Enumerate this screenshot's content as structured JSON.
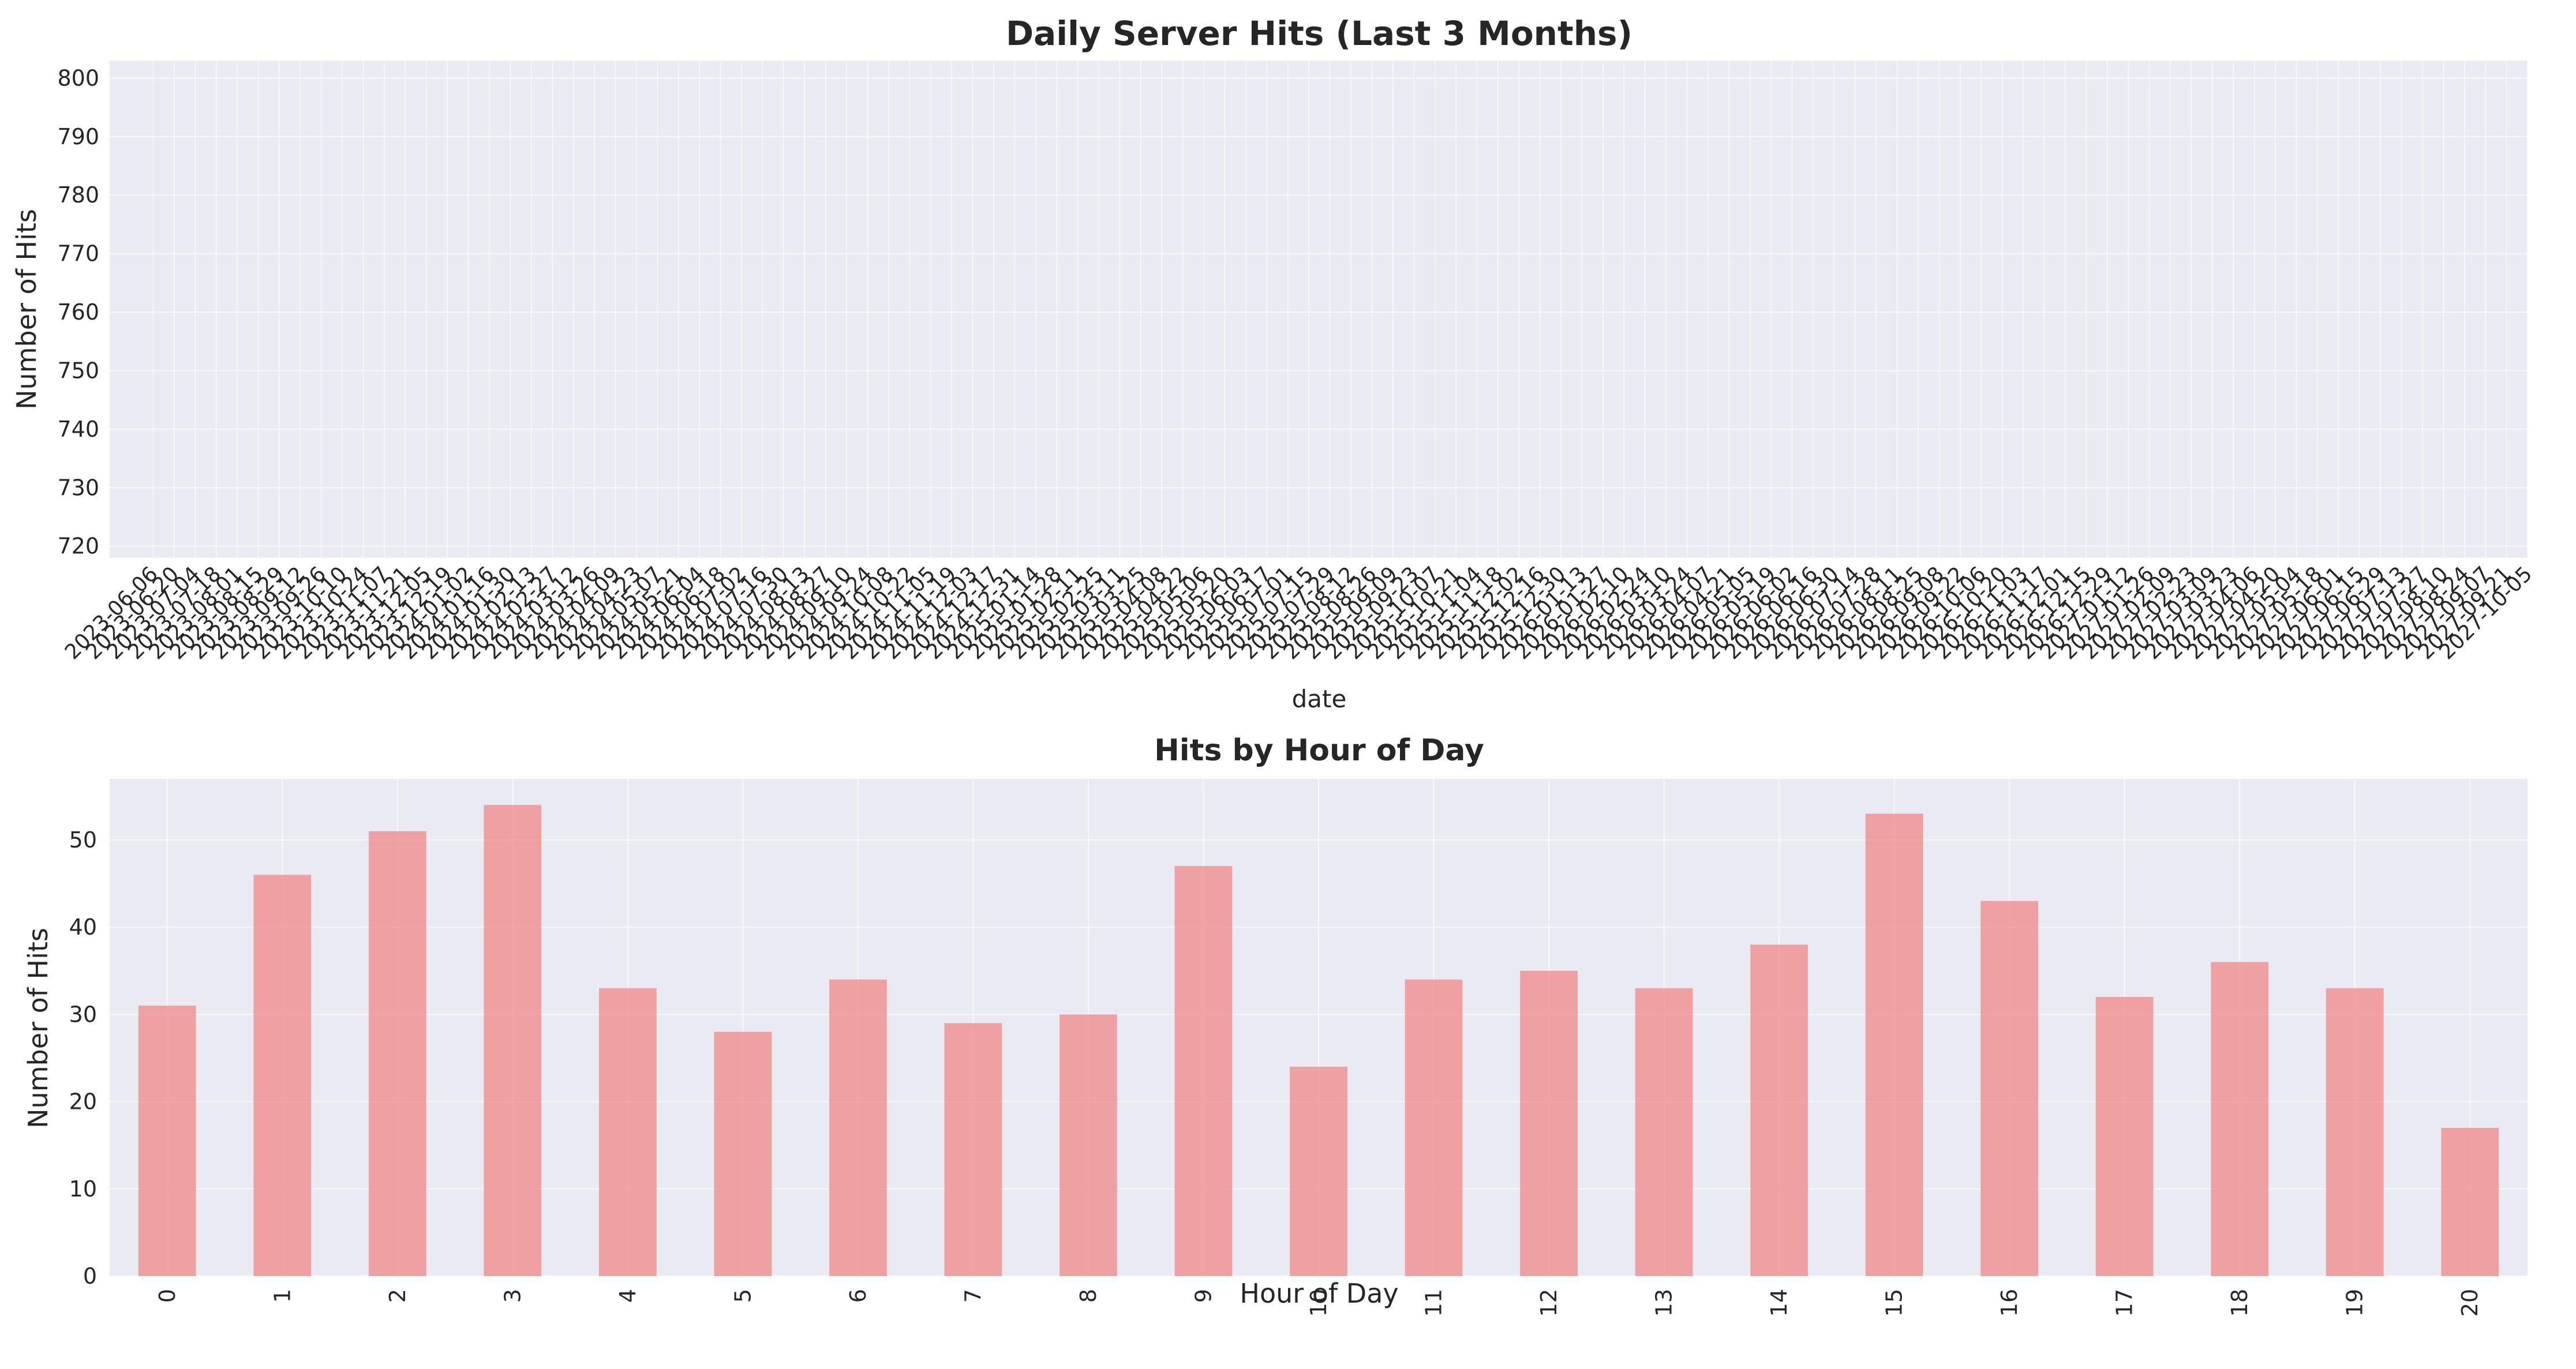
{
  "chart_data": [
    {
      "type": "line",
      "title": "Daily Server Hits (Last 3 Months)",
      "xlabel": "date",
      "ylabel": "Number of Hits",
      "ylim": [
        718,
        803
      ],
      "yticks": [
        720,
        730,
        740,
        750,
        760,
        770,
        780,
        790,
        800
      ],
      "xlim": [
        "2023-05-08",
        "2027-10-05"
      ],
      "x_tick_interval_days": 14,
      "x_tick_range": [
        "2023-06-06",
        "2027-10-05"
      ],
      "series": [
        {
          "x": [],
          "y": []
        }
      ],
      "grid": true,
      "background": "#eaeaf2"
    },
    {
      "type": "bar",
      "title": "Hits by Hour of Day",
      "xlabel": "Hour of Day",
      "ylabel": "Number of Hits",
      "categories": [
        "0",
        "1",
        "2",
        "3",
        "4",
        "5",
        "6",
        "7",
        "8",
        "9",
        "10",
        "11",
        "12",
        "13",
        "14",
        "15",
        "16",
        "17",
        "18",
        "19",
        "20"
      ],
      "values": [
        31,
        46,
        51,
        54,
        33,
        28,
        34,
        29,
        30,
        47,
        24,
        34,
        35,
        33,
        38,
        53,
        43,
        32,
        36,
        33,
        17
      ],
      "ylim": [
        0,
        57
      ],
      "yticks": [
        0,
        10,
        20,
        30,
        40,
        50
      ],
      "bar_color": "#f08080",
      "bar_opacity": 0.7,
      "grid": true,
      "background": "#eaeaf2"
    }
  ]
}
